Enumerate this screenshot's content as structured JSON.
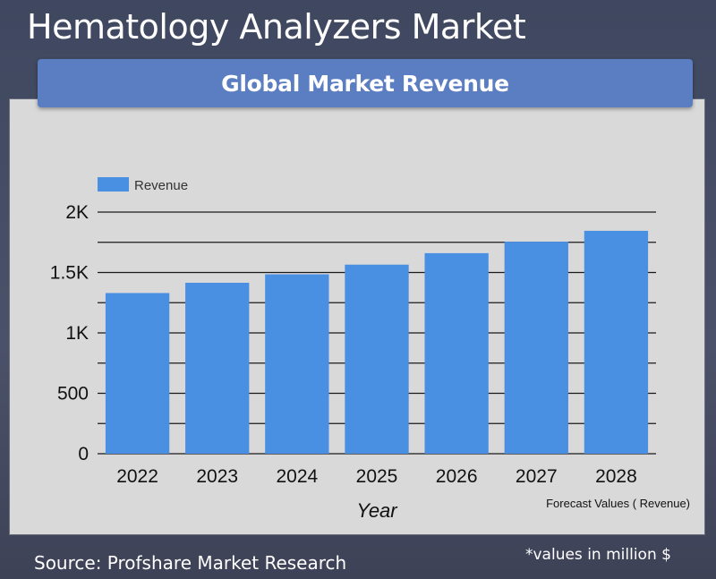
{
  "page": {
    "title": "Hematology Analyzers Market",
    "banner": "Global Market Revenue",
    "source": "Source: Profshare Market Research",
    "footnote": "*values in million $"
  },
  "colors": {
    "bar": "#4a90e2",
    "banner": "#5b7ec2",
    "panel": "#d9d9d9",
    "background": "#434a62"
  },
  "chart_data": {
    "type": "bar",
    "title": "",
    "xlabel": "Year",
    "ylabel": "",
    "categories": [
      "2022",
      "2023",
      "2024",
      "2025",
      "2026",
      "2027",
      "2028"
    ],
    "series": [
      {
        "name": "Revenue",
        "values": [
          1330,
          1415,
          1485,
          1565,
          1660,
          1755,
          1845
        ]
      }
    ],
    "ylim": [
      0,
      2000
    ],
    "yticks": [
      0,
      500,
      1000,
      1500,
      2000
    ],
    "ytick_labels": [
      "0",
      "500",
      "1K",
      "1.5K",
      "2K"
    ],
    "grid": true,
    "legend": "top-left",
    "annotation": "Forecast Values ( Revenue)"
  }
}
